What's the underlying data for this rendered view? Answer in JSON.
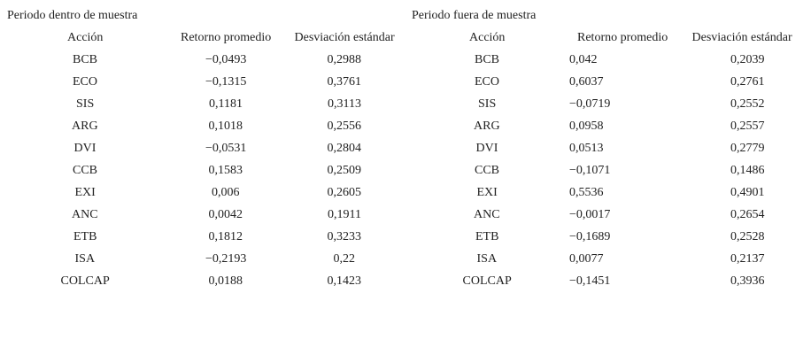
{
  "tables": [
    {
      "title": "Periodo dentro de muestra",
      "headers": [
        "Acción",
        "Retorno promedio",
        "Desviación estándar"
      ],
      "rows": [
        [
          "BCB",
          "−0,0493",
          "0,2988"
        ],
        [
          "ECO",
          "−0,1315",
          "0,3761"
        ],
        [
          "SIS",
          "0,1181",
          "0,3113"
        ],
        [
          "ARG",
          "0,1018",
          "0,2556"
        ],
        [
          "DVI",
          "−0,0531",
          "0,2804"
        ],
        [
          "CCB",
          "0,1583",
          "0,2509"
        ],
        [
          "EXI",
          "0,006",
          "0,2605"
        ],
        [
          "ANC",
          "0,0042",
          "0,1911"
        ],
        [
          "ETB",
          "0,1812",
          "0,3233"
        ],
        [
          "ISA",
          "−0,2193",
          "0,22"
        ],
        [
          "COLCAP",
          "0,0188",
          "0,1423"
        ]
      ]
    },
    {
      "title": "Periodo fuera de muestra",
      "headers": [
        "Acción",
        "Retorno promedio",
        "Desviación estándar"
      ],
      "rows": [
        [
          "BCB",
          "0,042",
          "0,2039"
        ],
        [
          "ECO",
          "0,6037",
          "0,2761"
        ],
        [
          "SIS",
          "−0,0719",
          "0,2552"
        ],
        [
          "ARG",
          "0,0958",
          "0,2557"
        ],
        [
          "DVI",
          "0,0513",
          "0,2779"
        ],
        [
          "CCB",
          "−0,1071",
          "0,1486"
        ],
        [
          "EXI",
          "0,5536",
          "0,4901"
        ],
        [
          "ANC",
          "−0,0017",
          "0,2654"
        ],
        [
          "ETB",
          "−0,1689",
          "0,2528"
        ],
        [
          "ISA",
          "0,0077",
          "0,2137"
        ],
        [
          "COLCAP",
          "−0,1451",
          "0,3936"
        ]
      ]
    }
  ]
}
